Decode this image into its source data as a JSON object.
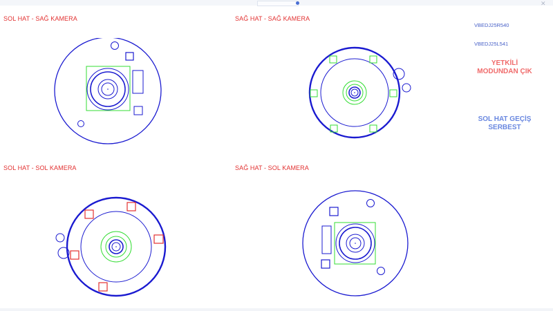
{
  "window": {
    "app_name": "",
    "menu": []
  },
  "panels": {
    "top_left": "SOL HAT - SAĞ KAMERA",
    "top_right": "SAĞ HAT - SAĞ KAMERA",
    "bottom_left": "SOL HAT - SOL KAMERA",
    "bottom_right": "SAĞ HAT - SOL KAMERA"
  },
  "side": {
    "right_part_value": "VBEDJ25R540",
    "left_part_value": "VBEDJ25L541",
    "exit_admin_button": "YETKİLİ MODUNDAN ÇIK",
    "left_line_status": "SOL HAT GEÇİŞ SERBEST"
  },
  "colors": {
    "label_red": "#e23030",
    "circle_blue": "#1a1ad0",
    "green": "#33dd33",
    "red_box": "#e23030",
    "exit_button": "#f06a6a",
    "status_blue": "#6a88e0"
  }
}
